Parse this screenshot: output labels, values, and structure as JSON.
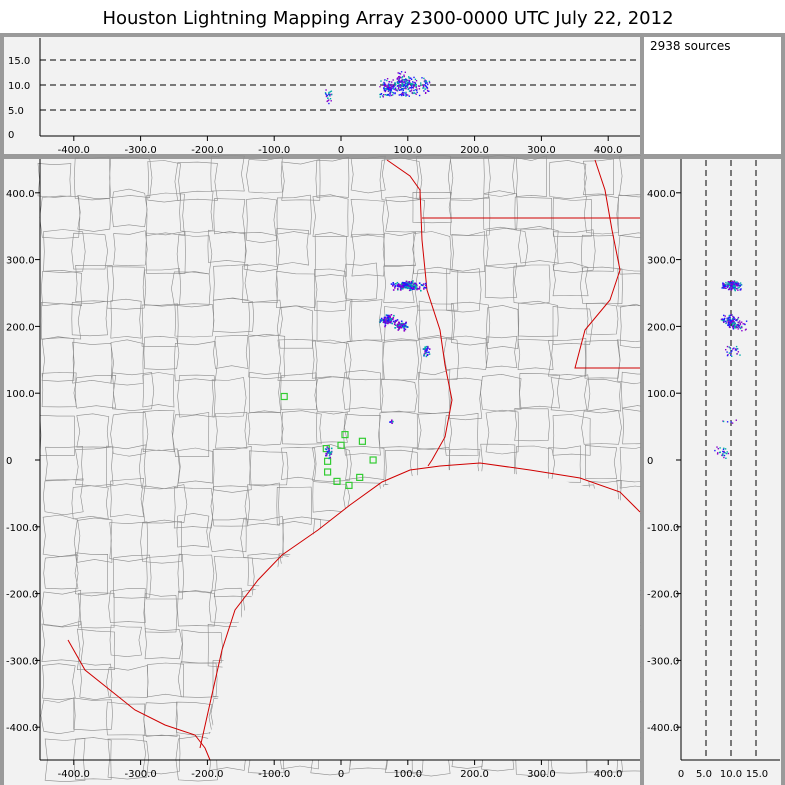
{
  "title": "Houston Lightning Mapping Array   2300-0000 UTC  July 22, 2012",
  "source_count_label": "2938 sources",
  "colors": {
    "background": "#f2f2f2",
    "frame": "#9a9a9a",
    "county_lines": "#8c8c8c",
    "state_coast_lines": "#d00000",
    "station_markers": "#33cc33",
    "source_low": "#1a1aff",
    "source_mid": "#00aaaa",
    "source_high": "#8800cc"
  },
  "axes": {
    "plan_x_ticks": [
      "-400.0",
      "-300.0",
      "-200.0",
      "-100.0",
      "0",
      "100.0",
      "200.0",
      "300.0",
      "400.0"
    ],
    "plan_y_ticks": [
      "400.0",
      "300.0",
      "200.0",
      "100.0",
      "0",
      "-100.0",
      "-200.0",
      "-300.0",
      "-400.0"
    ],
    "alt_ticks": [
      "15.0",
      "10.0",
      "5.0",
      "0"
    ],
    "side_alt_ticks": [
      "0",
      "5.0",
      "10.0",
      "15.0"
    ]
  },
  "map": {
    "x_range_km": [
      -450,
      450
    ],
    "y_range_km": [
      -440,
      450
    ],
    "alt_range_km": [
      0,
      19
    ],
    "stations_km": [
      [
        -85,
        95
      ],
      [
        -22,
        17
      ],
      [
        -20,
        -2
      ],
      [
        -20,
        -18
      ],
      [
        -6,
        -32
      ],
      [
        0,
        22
      ],
      [
        6,
        38
      ],
      [
        12,
        -38
      ],
      [
        28,
        -26
      ],
      [
        32,
        28
      ],
      [
        48,
        0
      ]
    ],
    "source_clusters": [
      {
        "x_km": 100,
        "y_km": 262,
        "alt_km": 10.0,
        "spread_x": 14,
        "spread_y": 4,
        "n": 160
      },
      {
        "x_km": 70,
        "y_km": 210,
        "alt_km": 9.5,
        "spread_x": 8,
        "spread_y": 5,
        "n": 90
      },
      {
        "x_km": 90,
        "y_km": 202,
        "alt_km": 11.0,
        "spread_x": 6,
        "spread_y": 4,
        "n": 60
      },
      {
        "x_km": 127,
        "y_km": 165,
        "alt_km": 10.0,
        "spread_x": 3,
        "spread_y": 5,
        "n": 25
      },
      {
        "x_km": -20,
        "y_km": 12,
        "alt_km": 8.0,
        "spread_x": 3,
        "spread_y": 6,
        "n": 25
      },
      {
        "x_km": 75,
        "y_km": 58,
        "alt_km": 9.0,
        "spread_x": 2,
        "spread_y": 2,
        "n": 6
      }
    ]
  }
}
